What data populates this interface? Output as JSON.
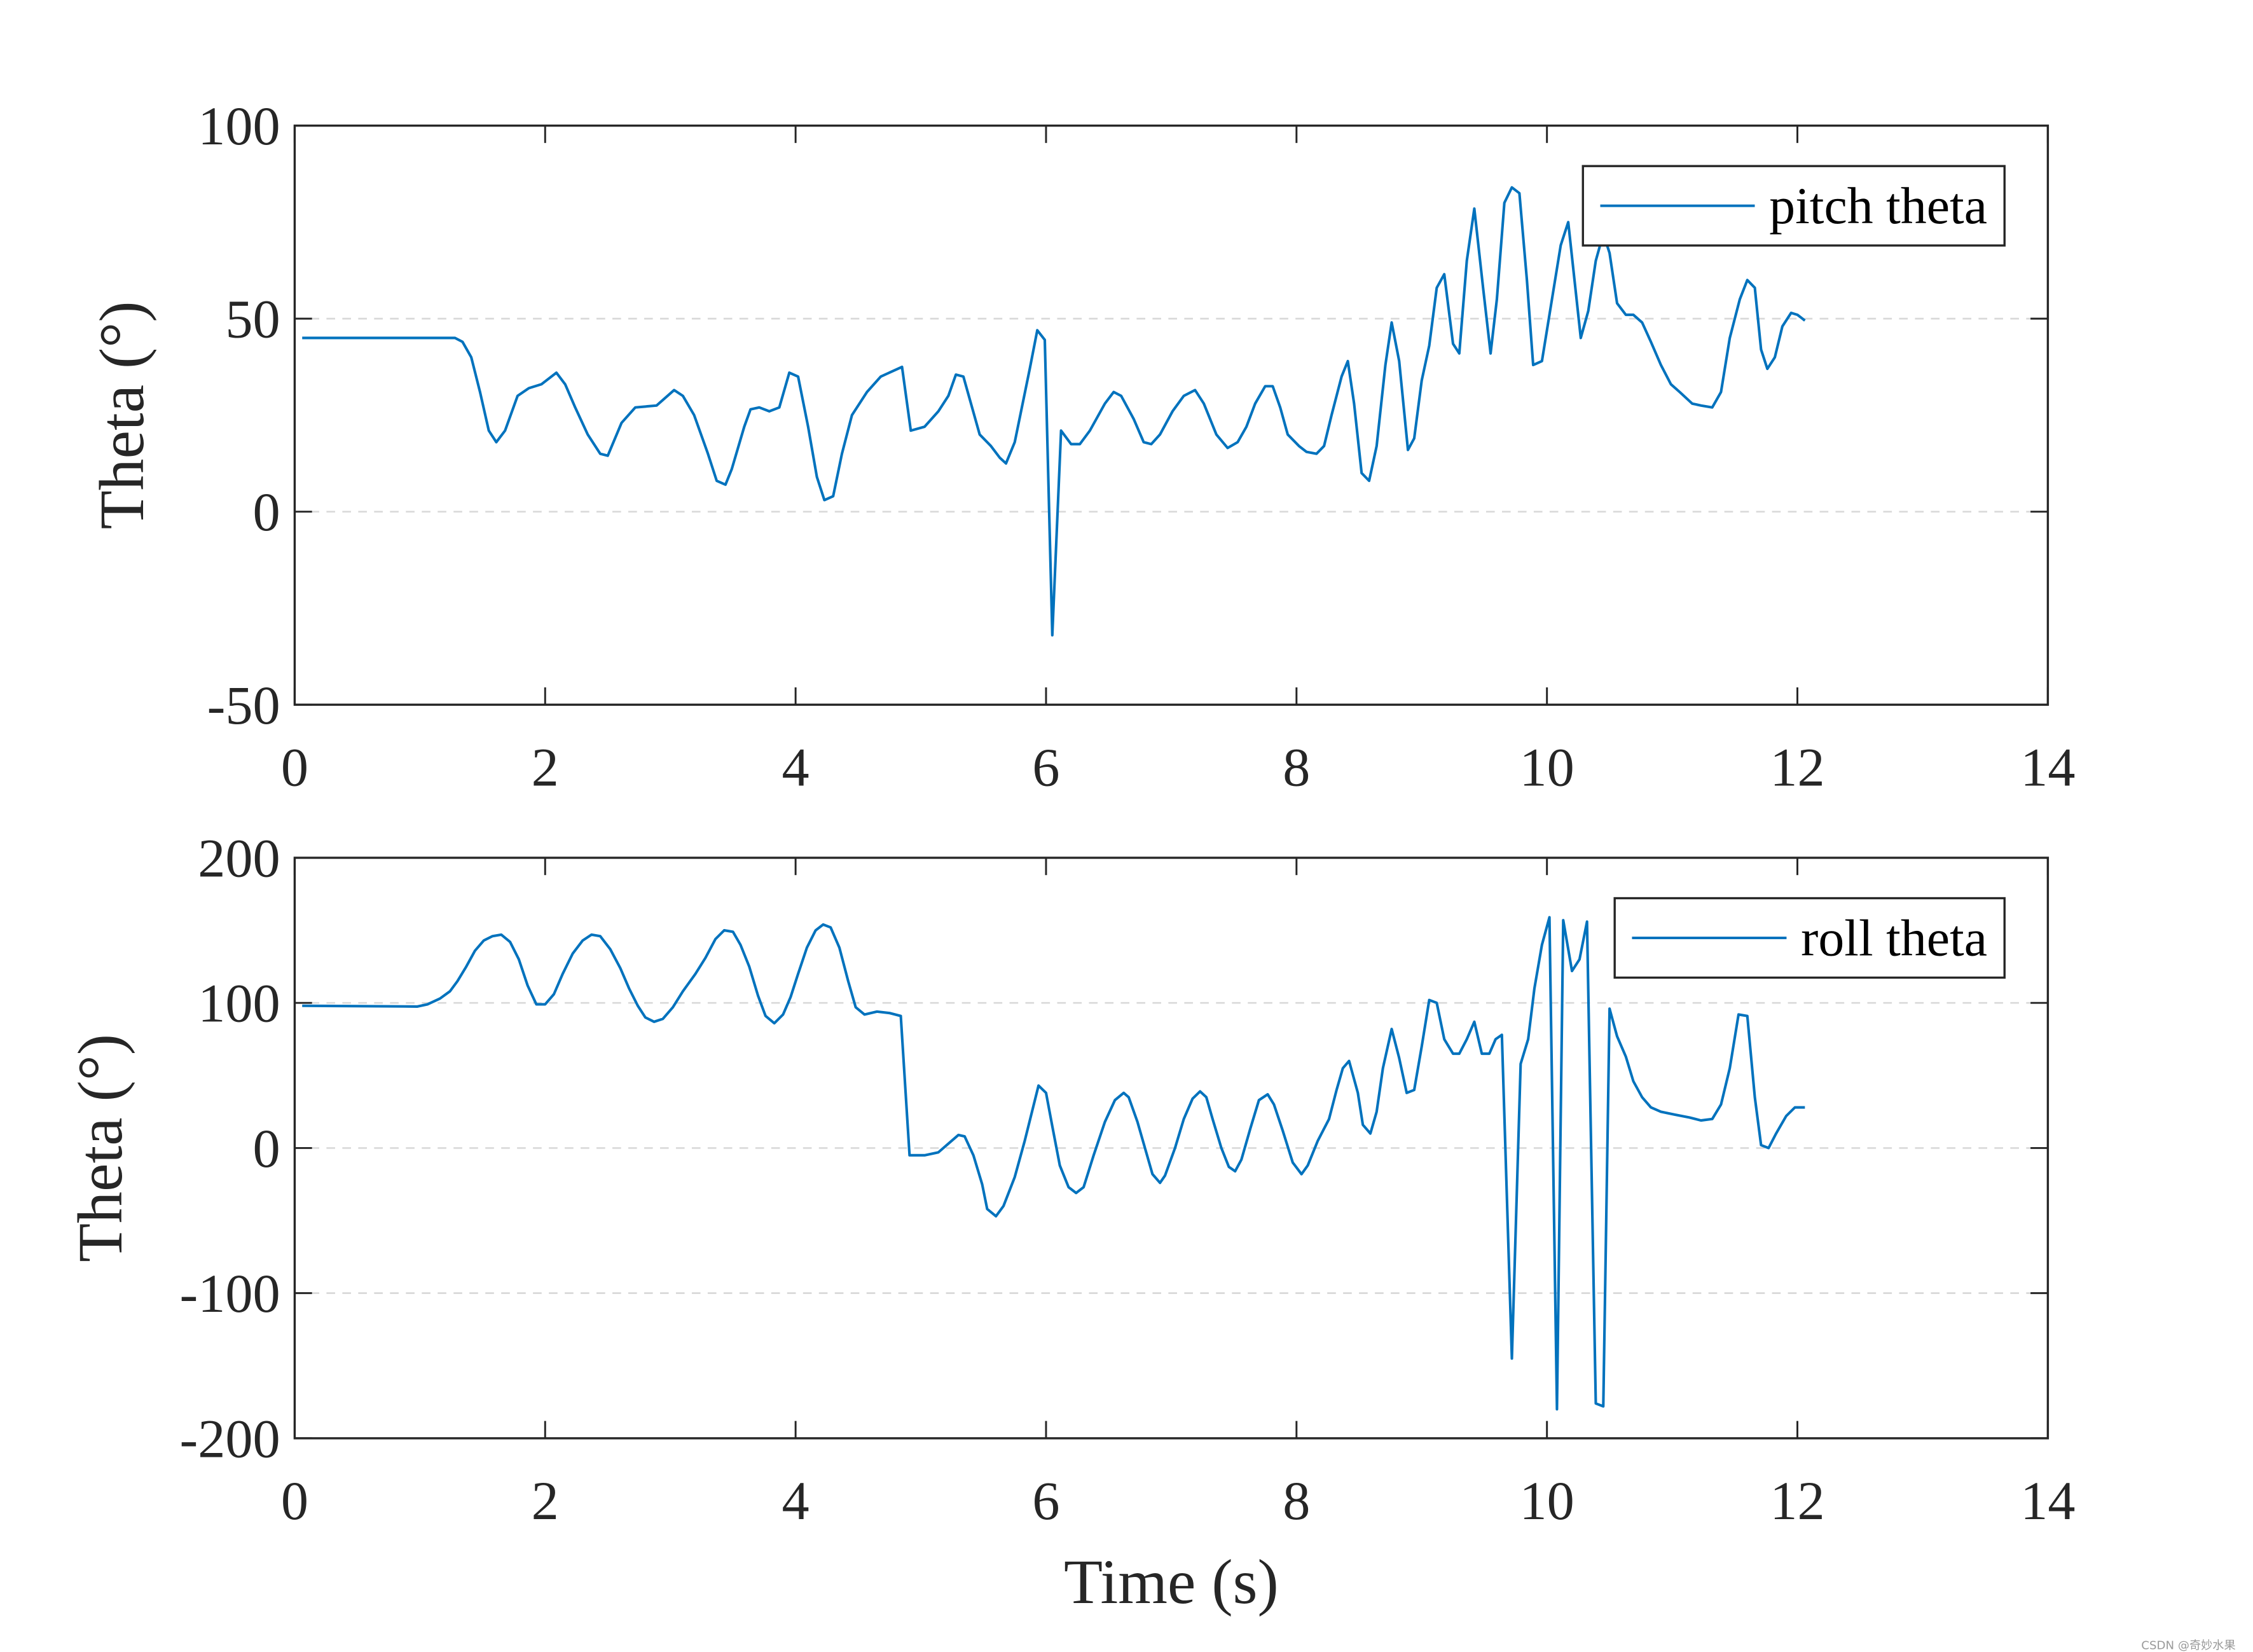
{
  "chart_data": [
    {
      "type": "line",
      "ylabel": "Theta (°)",
      "legend": "upper right",
      "grid": true,
      "xlim": [
        0,
        14
      ],
      "xticks": [
        0,
        2,
        4,
        6,
        8,
        10,
        12,
        14
      ],
      "ylim": [
        -50,
        100
      ],
      "yticks": [
        -50,
        0,
        50,
        100
      ],
      "x": [
        0.06,
        1.28,
        1.34,
        1.41,
        1.48,
        1.55,
        1.61,
        1.68,
        1.78,
        1.87,
        1.97,
        2.09,
        2.16,
        2.24,
        2.34,
        2.44,
        2.5,
        2.61,
        2.72,
        2.89,
        3.03,
        3.1,
        3.19,
        3.3,
        3.37,
        3.44,
        3.49,
        3.59,
        3.64,
        3.71,
        3.79,
        3.87,
        3.95,
        4.02,
        4.1,
        4.17,
        4.23,
        4.3,
        4.37,
        4.45,
        4.57,
        4.68,
        4.85,
        4.92,
        5.03,
        5.14,
        5.22,
        5.28,
        5.34,
        5.47,
        5.56,
        5.63,
        5.68,
        5.75,
        5.87,
        5.93,
        5.99,
        6.05,
        6.12,
        6.2,
        6.27,
        6.35,
        6.47,
        6.54,
        6.6,
        6.7,
        6.78,
        6.84,
        6.91,
        7.01,
        7.1,
        7.19,
        7.26,
        7.36,
        7.45,
        7.53,
        7.6,
        7.67,
        7.75,
        7.81,
        7.87,
        7.93,
        8.02,
        8.08,
        8.16,
        8.22,
        8.28,
        8.36,
        8.41,
        8.46,
        8.52,
        8.58,
        8.64,
        8.71,
        8.76,
        8.82,
        8.89,
        8.94,
        9.0,
        9.06,
        9.12,
        9.18,
        9.25,
        9.3,
        9.36,
        9.42,
        9.49,
        9.55,
        9.6,
        9.66,
        9.72,
        9.78,
        9.84,
        9.89,
        9.96,
        10.03,
        10.11,
        10.17,
        10.22,
        10.27,
        10.33,
        10.39,
        10.45,
        10.5,
        10.56,
        10.63,
        10.69,
        10.76,
        10.83,
        10.91,
        10.99,
        11.06,
        11.16,
        11.23,
        11.32,
        11.39,
        11.46,
        11.54,
        11.6,
        11.66,
        11.71,
        11.76,
        11.82,
        11.88,
        11.95,
        12.0,
        12.06
      ],
      "series": [
        {
          "name": "pitch theta",
          "color": "#0072BD",
          "values": [
            45,
            45,
            44,
            40,
            31,
            21,
            18,
            21,
            30,
            32,
            33,
            36,
            33,
            27,
            20,
            15,
            14.5,
            23,
            27,
            27.5,
            31.5,
            30,
            25,
            15,
            8,
            7,
            11,
            22,
            26.5,
            27,
            26,
            27,
            36,
            35,
            22,
            9,
            3,
            4,
            15,
            25,
            31,
            35,
            37.5,
            21,
            22,
            26,
            30,
            35.5,
            35,
            20,
            17,
            14,
            12.5,
            18,
            37,
            47,
            44.5,
            -32,
            21,
            17.5,
            17.5,
            21,
            28,
            31,
            30,
            24,
            18,
            17.5,
            20,
            26,
            30,
            31.5,
            28,
            20,
            16.5,
            18,
            22,
            28,
            32.5,
            32.5,
            27,
            20,
            17,
            15.5,
            15,
            17,
            25,
            35,
            39,
            28,
            10,
            8,
            17,
            38,
            49,
            39,
            16,
            19,
            34,
            43,
            58,
            61.5,
            43.5,
            41,
            65,
            78.5,
            58,
            41,
            55,
            80,
            84,
            82.5,
            60,
            38,
            39,
            53,
            69,
            75,
            60,
            45,
            52,
            65,
            72,
            67,
            54,
            51,
            51,
            49,
            44,
            38,
            33,
            31,
            28,
            27.5,
            27,
            31,
            45,
            55,
            60,
            58,
            42,
            37,
            40,
            48,
            51.5,
            51,
            49.5
          ]
        }
      ]
    },
    {
      "type": "line",
      "ylabel": "Theta (°)",
      "xlabel": "Time (s)",
      "legend": "upper right",
      "grid": true,
      "xlim": [
        0,
        14
      ],
      "xticks": [
        0,
        2,
        4,
        6,
        8,
        10,
        12,
        14
      ],
      "ylim": [
        -200,
        200
      ],
      "yticks": [
        -200,
        -100,
        0,
        100,
        200
      ],
      "x": [
        0.06,
        0.98,
        1.06,
        1.16,
        1.24,
        1.3,
        1.37,
        1.44,
        1.51,
        1.58,
        1.65,
        1.72,
        1.79,
        1.86,
        1.93,
        2.0,
        2.07,
        2.14,
        2.22,
        2.3,
        2.37,
        2.44,
        2.52,
        2.6,
        2.67,
        2.74,
        2.8,
        2.87,
        2.94,
        3.02,
        3.1,
        3.2,
        3.28,
        3.36,
        3.43,
        3.5,
        3.56,
        3.63,
        3.7,
        3.76,
        3.83,
        3.9,
        3.96,
        4.02,
        4.09,
        4.16,
        4.22,
        4.28,
        4.35,
        4.42,
        4.48,
        4.55,
        4.65,
        4.75,
        4.84,
        4.91,
        5.03,
        5.14,
        5.22,
        5.3,
        5.35,
        5.42,
        5.49,
        5.53,
        5.6,
        5.66,
        5.75,
        5.83,
        5.94,
        6.0,
        6.05,
        6.11,
        6.18,
        6.24,
        6.3,
        6.38,
        6.47,
        6.55,
        6.62,
        6.66,
        6.73,
        6.79,
        6.85,
        6.91,
        6.95,
        7.03,
        7.1,
        7.17,
        7.23,
        7.28,
        7.33,
        7.4,
        7.46,
        7.51,
        7.56,
        7.63,
        7.7,
        7.77,
        7.82,
        7.89,
        7.97,
        8.04,
        8.09,
        8.17,
        8.26,
        8.32,
        8.37,
        8.42,
        8.49,
        8.53,
        8.59,
        8.64,
        8.69,
        8.76,
        8.82,
        8.88,
        8.94,
        9.0,
        9.06,
        9.12,
        9.18,
        9.25,
        9.3,
        9.36,
        9.42,
        9.48,
        9.54,
        9.59,
        9.64,
        9.72,
        9.79,
        9.85,
        9.9,
        9.96,
        10.02,
        10.08,
        10.13,
        10.2,
        10.26,
        10.32,
        10.39,
        10.45,
        10.5,
        10.56,
        10.63,
        10.69,
        10.76,
        10.83,
        10.91,
        11.02,
        11.14,
        11.23,
        11.32,
        11.39,
        11.46,
        11.53,
        11.6,
        11.66,
        11.71,
        11.77,
        11.83,
        11.91,
        11.98,
        12.06
      ],
      "series": [
        {
          "name": "roll theta",
          "color": "#0072BD",
          "values": [
            98,
            97.5,
            99,
            103,
            108,
            115,
            125,
            136,
            143,
            146,
            147,
            142,
            130,
            112,
            99,
            99,
            106,
            120,
            134,
            143,
            147,
            146,
            137,
            124,
            110,
            98,
            90,
            87,
            89,
            97,
            108,
            120,
            131,
            144,
            150,
            149,
            140,
            125,
            105,
            91,
            86,
            92,
            104,
            120,
            138,
            150,
            154,
            152,
            138,
            115,
            97,
            92,
            94,
            93,
            91,
            -5,
            -5,
            -3,
            3,
            9,
            8,
            -5,
            -25,
            -42,
            -47,
            -40,
            -20,
            5,
            43,
            38,
            15,
            -12,
            -27,
            -31,
            -27,
            -5,
            18,
            33,
            38,
            35,
            18,
            0,
            -18,
            -24,
            -19,
            0,
            20,
            34,
            39,
            35,
            20,
            0,
            -13,
            -16,
            -8,
            13,
            33,
            37,
            30,
            12,
            -10,
            -18,
            -12,
            5,
            20,
            40,
            55,
            60,
            38,
            16,
            10,
            25,
            55,
            82,
            62,
            38,
            40,
            70,
            102,
            100,
            75,
            65,
            65,
            75,
            87,
            65,
            65,
            75,
            78,
            -145,
            58,
            75,
            110,
            140,
            159,
            -180,
            157,
            122,
            130,
            156,
            -176,
            -178,
            96,
            77,
            63,
            46,
            35,
            28,
            25,
            23,
            21,
            19,
            20,
            30,
            55,
            92,
            91,
            35,
            2,
            0,
            10,
            22,
            28,
            28
          ]
        }
      ]
    }
  ],
  "watermark": "CSDN @奇妙水果"
}
